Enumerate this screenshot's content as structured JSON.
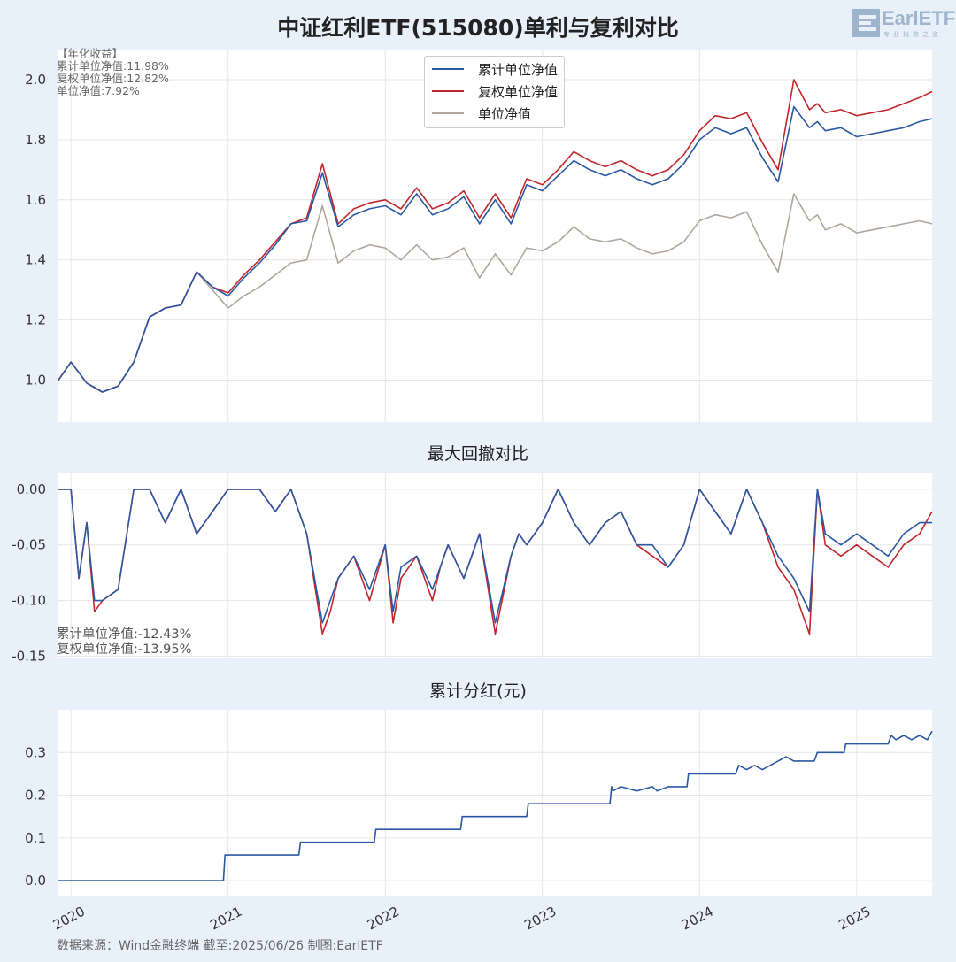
{
  "title": "中证红利ETF(515080)单利与复利对比",
  "logo": {
    "text": "EarlETF",
    "sub": "专业指数之道"
  },
  "source": "数据来源：Wind金融终端 截至:2025/06/26 制图:EarlETF",
  "colors": {
    "cum": "#2b58a3",
    "adj": "#c0262c",
    "unit": "#b0a69e",
    "grid": "#e6e6e6",
    "plotbg": "#ffffff"
  },
  "legend": [
    "累计单位净值",
    "复权单位净值",
    "单位净值"
  ],
  "annotations": {
    "returns": [
      "【年化收益】",
      "累计单位净值:11.98%",
      "复权单位净值:12.82%",
      "单位净值:7.92%"
    ],
    "drawdown": [
      "累计单位净值:-12.43%",
      "复权单位净值:-13.95%"
    ]
  },
  "chart_data": [
    {
      "type": "line",
      "title": "中证红利ETF(515080)单利与复利对比",
      "x_ticks": [
        "2020",
        "2021",
        "2022",
        "2023",
        "2024",
        "2025"
      ],
      "ylim": [
        0.86,
        2.1
      ],
      "y_ticks": [
        "1.0",
        "1.2",
        "1.4",
        "1.6",
        "1.8",
        "2.0"
      ],
      "grid": true,
      "legend_position": "top-center",
      "x": [
        2019.92,
        2020.0,
        2020.1,
        2020.2,
        2020.3,
        2020.4,
        2020.5,
        2020.6,
        2020.7,
        2020.8,
        2020.9,
        2021.0,
        2021.1,
        2021.2,
        2021.3,
        2021.4,
        2021.5,
        2021.6,
        2021.7,
        2021.8,
        2021.9,
        2022.0,
        2022.1,
        2022.2,
        2022.3,
        2022.4,
        2022.5,
        2022.6,
        2022.7,
        2022.8,
        2022.9,
        2023.0,
        2023.1,
        2023.2,
        2023.3,
        2023.4,
        2023.5,
        2023.6,
        2023.7,
        2023.8,
        2023.9,
        2024.0,
        2024.1,
        2024.2,
        2024.3,
        2024.4,
        2024.5,
        2024.6,
        2024.7,
        2024.75,
        2024.8,
        2024.9,
        2025.0,
        2025.1,
        2025.2,
        2025.3,
        2025.4,
        2025.48
      ],
      "series": [
        {
          "name": "累计单位净值",
          "values": [
            1.0,
            1.06,
            0.99,
            0.96,
            0.98,
            1.06,
            1.21,
            1.24,
            1.25,
            1.36,
            1.31,
            1.28,
            1.34,
            1.39,
            1.45,
            1.52,
            1.53,
            1.69,
            1.51,
            1.55,
            1.57,
            1.58,
            1.55,
            1.62,
            1.55,
            1.57,
            1.61,
            1.52,
            1.6,
            1.52,
            1.65,
            1.63,
            1.68,
            1.73,
            1.7,
            1.68,
            1.7,
            1.67,
            1.65,
            1.67,
            1.72,
            1.8,
            1.84,
            1.82,
            1.84,
            1.74,
            1.66,
            1.91,
            1.84,
            1.86,
            1.83,
            1.84,
            1.81,
            1.82,
            1.83,
            1.84,
            1.86,
            1.87
          ]
        },
        {
          "name": "复权单位净值",
          "values": [
            1.0,
            1.06,
            0.99,
            0.96,
            0.98,
            1.06,
            1.21,
            1.24,
            1.25,
            1.36,
            1.31,
            1.29,
            1.35,
            1.4,
            1.46,
            1.52,
            1.54,
            1.72,
            1.52,
            1.57,
            1.59,
            1.6,
            1.57,
            1.64,
            1.57,
            1.59,
            1.63,
            1.54,
            1.62,
            1.54,
            1.67,
            1.65,
            1.7,
            1.76,
            1.73,
            1.71,
            1.73,
            1.7,
            1.68,
            1.7,
            1.75,
            1.83,
            1.88,
            1.87,
            1.89,
            1.79,
            1.7,
            2.0,
            1.9,
            1.92,
            1.89,
            1.9,
            1.88,
            1.89,
            1.9,
            1.92,
            1.94,
            1.96
          ]
        },
        {
          "name": "单位净值",
          "values": [
            1.0,
            1.06,
            0.99,
            0.96,
            0.98,
            1.06,
            1.21,
            1.24,
            1.25,
            1.36,
            1.3,
            1.24,
            1.28,
            1.31,
            1.35,
            1.39,
            1.4,
            1.58,
            1.39,
            1.43,
            1.45,
            1.44,
            1.4,
            1.45,
            1.4,
            1.41,
            1.44,
            1.34,
            1.42,
            1.35,
            1.44,
            1.43,
            1.46,
            1.51,
            1.47,
            1.46,
            1.47,
            1.44,
            1.42,
            1.43,
            1.46,
            1.53,
            1.55,
            1.54,
            1.56,
            1.45,
            1.36,
            1.62,
            1.53,
            1.55,
            1.5,
            1.52,
            1.49,
            1.5,
            1.51,
            1.52,
            1.53,
            1.52
          ]
        }
      ]
    },
    {
      "type": "line",
      "title": "最大回撤对比",
      "ylim": [
        -0.152,
        0.015
      ],
      "y_ticks": [
        "0.00",
        "-0.05",
        "-0.10",
        "-0.15"
      ],
      "x_ticks": [
        "2020",
        "2021",
        "2022",
        "2023",
        "2024",
        "2025"
      ],
      "grid": true,
      "x": [
        2019.92,
        2020.0,
        2020.05,
        2020.1,
        2020.15,
        2020.2,
        2020.3,
        2020.4,
        2020.5,
        2020.6,
        2020.7,
        2020.8,
        2020.9,
        2021.0,
        2021.1,
        2021.2,
        2021.3,
        2021.4,
        2021.5,
        2021.6,
        2021.65,
        2021.7,
        2021.8,
        2021.9,
        2022.0,
        2022.05,
        2022.1,
        2022.2,
        2022.3,
        2022.35,
        2022.4,
        2022.5,
        2022.6,
        2022.7,
        2022.8,
        2022.85,
        2022.9,
        2023.0,
        2023.1,
        2023.2,
        2023.3,
        2023.4,
        2023.5,
        2023.6,
        2023.7,
        2023.8,
        2023.9,
        2024.0,
        2024.1,
        2024.2,
        2024.3,
        2024.4,
        2024.5,
        2024.6,
        2024.7,
        2024.75,
        2024.8,
        2024.9,
        2025.0,
        2025.1,
        2025.2,
        2025.3,
        2025.4,
        2025.48
      ],
      "series": [
        {
          "name": "累计单位净值",
          "values": [
            0.0,
            0.0,
            -0.08,
            -0.03,
            -0.1,
            -0.1,
            -0.09,
            0.0,
            0.0,
            -0.03,
            0.0,
            -0.04,
            -0.02,
            0.0,
            0.0,
            0.0,
            -0.02,
            0.0,
            -0.04,
            -0.12,
            -0.1,
            -0.08,
            -0.06,
            -0.09,
            -0.05,
            -0.11,
            -0.07,
            -0.06,
            -0.09,
            -0.07,
            -0.05,
            -0.08,
            -0.04,
            -0.12,
            -0.06,
            -0.04,
            -0.05,
            -0.03,
            0.0,
            -0.03,
            -0.05,
            -0.03,
            -0.02,
            -0.05,
            -0.05,
            -0.07,
            -0.05,
            0.0,
            -0.02,
            -0.04,
            0.0,
            -0.03,
            -0.06,
            -0.08,
            -0.11,
            0.0,
            -0.04,
            -0.05,
            -0.04,
            -0.05,
            -0.06,
            -0.04,
            -0.03,
            -0.03
          ]
        },
        {
          "name": "复权单位净值",
          "values": [
            0.0,
            0.0,
            -0.08,
            -0.03,
            -0.11,
            -0.1,
            -0.09,
            0.0,
            0.0,
            -0.03,
            0.0,
            -0.04,
            -0.02,
            0.0,
            0.0,
            0.0,
            -0.02,
            0.0,
            -0.04,
            -0.13,
            -0.11,
            -0.08,
            -0.06,
            -0.1,
            -0.05,
            -0.12,
            -0.08,
            -0.06,
            -0.1,
            -0.07,
            -0.05,
            -0.08,
            -0.04,
            -0.13,
            -0.06,
            -0.04,
            -0.05,
            -0.03,
            0.0,
            -0.03,
            -0.05,
            -0.03,
            -0.02,
            -0.05,
            -0.06,
            -0.07,
            -0.05,
            0.0,
            -0.02,
            -0.04,
            0.0,
            -0.03,
            -0.07,
            -0.09,
            -0.13,
            0.0,
            -0.05,
            -0.06,
            -0.05,
            -0.06,
            -0.07,
            -0.05,
            -0.04,
            -0.02
          ]
        }
      ]
    },
    {
      "type": "line",
      "title": "累计分红(元)",
      "ylim": [
        -0.035,
        0.4
      ],
      "y_ticks": [
        "0.0",
        "0.1",
        "0.2",
        "0.3"
      ],
      "x_ticks": [
        "2020",
        "2021",
        "2022",
        "2023",
        "2024",
        "2025"
      ],
      "grid": true,
      "x": [
        2019.92,
        2020.97,
        2020.98,
        2021.45,
        2021.46,
        2021.93,
        2021.94,
        2022.48,
        2022.49,
        2022.9,
        2022.91,
        2023.43,
        2023.44,
        2023.45,
        2023.5,
        2023.6,
        2023.7,
        2023.73,
        2023.8,
        2023.92,
        2023.93,
        2024.23,
        2024.25,
        2024.3,
        2024.35,
        2024.4,
        2024.45,
        2024.55,
        2024.6,
        2024.73,
        2024.75,
        2024.92,
        2024.93,
        2025.2,
        2025.22,
        2025.25,
        2025.3,
        2025.35,
        2025.4,
        2025.45,
        2025.48
      ],
      "series": [
        {
          "name": "累计分红",
          "values": [
            0.0,
            0.0,
            0.06,
            0.06,
            0.09,
            0.09,
            0.12,
            0.12,
            0.15,
            0.15,
            0.18,
            0.18,
            0.22,
            0.21,
            0.22,
            0.21,
            0.22,
            0.21,
            0.22,
            0.22,
            0.25,
            0.25,
            0.27,
            0.26,
            0.27,
            0.26,
            0.27,
            0.29,
            0.28,
            0.28,
            0.3,
            0.3,
            0.32,
            0.32,
            0.34,
            0.33,
            0.34,
            0.33,
            0.34,
            0.33,
            0.35
          ]
        }
      ]
    }
  ]
}
